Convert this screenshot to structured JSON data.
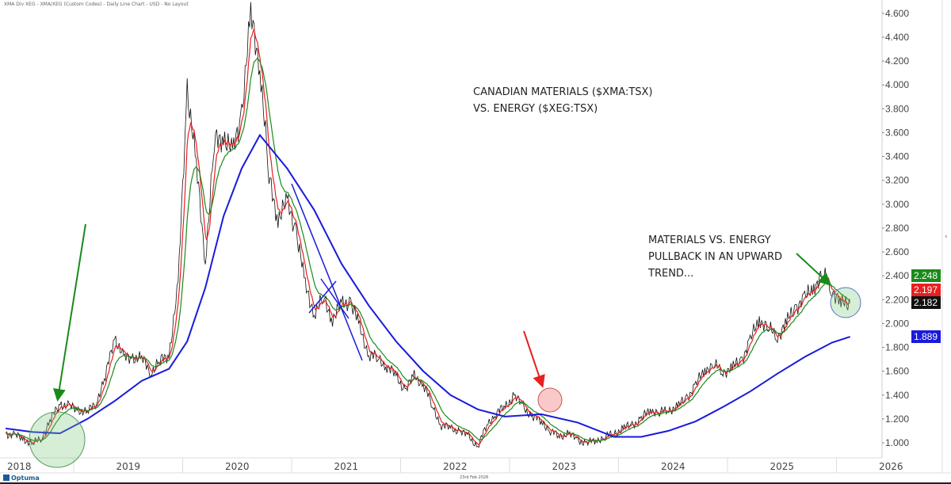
{
  "header": {
    "title": "XMA Div XEG - XMA/XEG (Custom Codes) - Daily Line Chart - USD - No Layout"
  },
  "footer": {
    "logo": "Optuma",
    "date": "23rd Feb 2026",
    "collapse_icon": "chevron-left-icon"
  },
  "annotations": {
    "title": "CANADIAN MATERIALS ($XMA:TSX)\nVS. ENERGY ($XEG:TSX)",
    "note": "MATERIALS VS. ENERGY\nPULLBACK IN AN UPWARD\nTREND..."
  },
  "chart_data": {
    "type": "line",
    "title": "",
    "ylim": [
      0.9,
      4.65
    ],
    "yticks": [
      "1.000",
      "1.200",
      "1.400",
      "1.600",
      "1.800",
      "2.000",
      "2.200",
      "2.400",
      "2.600",
      "2.800",
      "3.000",
      "3.200",
      "3.400",
      "3.600",
      "3.800",
      "4.000",
      "4.200",
      "4.400",
      "4.600"
    ],
    "xticks": [
      "2018",
      "2019",
      "2020",
      "2021",
      "2022",
      "2023",
      "2024",
      "2025",
      "2026"
    ],
    "grid": false,
    "last_value_labels": [
      {
        "value": "2.248",
        "color": "#1a8a1a"
      },
      {
        "value": "2.197",
        "color": "#e82020"
      },
      {
        "value": "2.182",
        "color": "#111111"
      },
      {
        "value": "1.889",
        "color": "#1a1adc"
      }
    ],
    "series": [
      {
        "key": "price",
        "color": "#111111",
        "points": [
          [
            "2018-05",
            1.08
          ],
          [
            "2018-06",
            1.06
          ],
          [
            "2018-07",
            1.03
          ],
          [
            "2018-08",
            0.99
          ],
          [
            "2018-09",
            1.05
          ],
          [
            "2018-10",
            1.2
          ],
          [
            "2018-11",
            1.33
          ],
          [
            "2018-12",
            1.3
          ],
          [
            "2019-01",
            1.28
          ],
          [
            "2019-02",
            1.25
          ],
          [
            "2019-03",
            1.35
          ],
          [
            "2019-04",
            1.55
          ],
          [
            "2019-05",
            1.9
          ],
          [
            "2019-06",
            1.7
          ],
          [
            "2019-07",
            1.72
          ],
          [
            "2019-08",
            1.7
          ],
          [
            "2019-09",
            1.6
          ],
          [
            "2019-10",
            1.68
          ],
          [
            "2019-11",
            1.75
          ],
          [
            "2019-12",
            2.3
          ],
          [
            "2020-01",
            4.0
          ],
          [
            "2020-02",
            3.3
          ],
          [
            "2020-03",
            2.55
          ],
          [
            "2020-04",
            3.5
          ],
          [
            "2020-05",
            3.6
          ],
          [
            "2020-06",
            3.4
          ],
          [
            "2020-07",
            3.8
          ],
          [
            "2020-08",
            4.55
          ],
          [
            "2020-09",
            4.2
          ],
          [
            "2020-10",
            3.2
          ],
          [
            "2020-11",
            2.9
          ],
          [
            "2020-12",
            3.0
          ],
          [
            "2021-01",
            2.8
          ],
          [
            "2021-02",
            2.3
          ],
          [
            "2021-03",
            2.1
          ],
          [
            "2021-04",
            2.2
          ],
          [
            "2021-05",
            2.05
          ],
          [
            "2021-06",
            2.15
          ],
          [
            "2021-07",
            2.2
          ],
          [
            "2021-08",
            1.95
          ],
          [
            "2021-09",
            1.75
          ],
          [
            "2021-10",
            1.7
          ],
          [
            "2021-11",
            1.65
          ],
          [
            "2021-12",
            1.55
          ],
          [
            "2022-01",
            1.45
          ],
          [
            "2022-02",
            1.55
          ],
          [
            "2022-03",
            1.5
          ],
          [
            "2022-04",
            1.3
          ],
          [
            "2022-05",
            1.15
          ],
          [
            "2022-06",
            1.12
          ],
          [
            "2022-07",
            1.1
          ],
          [
            "2022-08",
            1.05
          ],
          [
            "2022-09",
            0.97
          ],
          [
            "2022-10",
            1.15
          ],
          [
            "2022-11",
            1.25
          ],
          [
            "2022-12",
            1.3
          ],
          [
            "2023-01",
            1.4
          ],
          [
            "2023-02",
            1.3
          ],
          [
            "2023-03",
            1.22
          ],
          [
            "2023-04",
            1.18
          ],
          [
            "2023-05",
            1.1
          ],
          [
            "2023-06",
            1.05
          ],
          [
            "2023-07",
            1.08
          ],
          [
            "2023-08",
            1.02
          ],
          [
            "2023-09",
            1.0
          ],
          [
            "2023-10",
            1.02
          ],
          [
            "2023-11",
            1.05
          ],
          [
            "2023-12",
            1.08
          ],
          [
            "2024-01",
            1.12
          ],
          [
            "2024-02",
            1.15
          ],
          [
            "2024-03",
            1.2
          ],
          [
            "2024-04",
            1.28
          ],
          [
            "2024-05",
            1.25
          ],
          [
            "2024-06",
            1.28
          ],
          [
            "2024-07",
            1.3
          ],
          [
            "2024-08",
            1.38
          ],
          [
            "2024-09",
            1.48
          ],
          [
            "2024-10",
            1.62
          ],
          [
            "2024-11",
            1.65
          ],
          [
            "2024-12",
            1.6
          ],
          [
            "2025-01",
            1.62
          ],
          [
            "2025-02",
            1.7
          ],
          [
            "2025-03",
            1.85
          ],
          [
            "2025-04",
            2.05
          ],
          [
            "2025-05",
            1.95
          ],
          [
            "2025-06",
            1.9
          ],
          [
            "2025-07",
            2.0
          ],
          [
            "2025-08",
            2.15
          ],
          [
            "2025-09",
            2.2
          ],
          [
            "2025-10",
            2.32
          ],
          [
            "2025-11",
            2.4
          ],
          [
            "2025-12",
            2.3
          ],
          [
            "2026-01",
            2.15
          ],
          [
            "2026-02",
            2.182
          ]
        ]
      },
      {
        "key": "long_ma",
        "color": "#1a1adc",
        "points": [
          [
            "2018-05",
            1.12
          ],
          [
            "2018-08",
            1.09
          ],
          [
            "2018-11",
            1.08
          ],
          [
            "2019-02",
            1.2
          ],
          [
            "2019-05",
            1.35
          ],
          [
            "2019-08",
            1.52
          ],
          [
            "2019-11",
            1.62
          ],
          [
            "2020-01",
            1.85
          ],
          [
            "2020-03",
            2.3
          ],
          [
            "2020-05",
            2.9
          ],
          [
            "2020-07",
            3.3
          ],
          [
            "2020-09",
            3.58
          ],
          [
            "2020-12",
            3.3
          ],
          [
            "2021-03",
            2.95
          ],
          [
            "2021-06",
            2.5
          ],
          [
            "2021-09",
            2.15
          ],
          [
            "2021-12",
            1.85
          ],
          [
            "2022-03",
            1.6
          ],
          [
            "2022-06",
            1.4
          ],
          [
            "2022-09",
            1.28
          ],
          [
            "2022-12",
            1.22
          ],
          [
            "2023-04",
            1.24
          ],
          [
            "2023-08",
            1.17
          ],
          [
            "2023-12",
            1.05
          ],
          [
            "2024-03",
            1.05
          ],
          [
            "2024-06",
            1.1
          ],
          [
            "2024-09",
            1.18
          ],
          [
            "2024-12",
            1.3
          ],
          [
            "2025-03",
            1.43
          ],
          [
            "2025-06",
            1.58
          ],
          [
            "2025-09",
            1.72
          ],
          [
            "2025-12",
            1.84
          ],
          [
            "2026-02",
            1.889
          ]
        ]
      }
    ],
    "derived_series": [
      {
        "key": "short_ma",
        "color": "#e82020",
        "of": "price"
      },
      {
        "key": "mid_ma",
        "color": "#1a8a1a",
        "of": "price"
      }
    ]
  }
}
